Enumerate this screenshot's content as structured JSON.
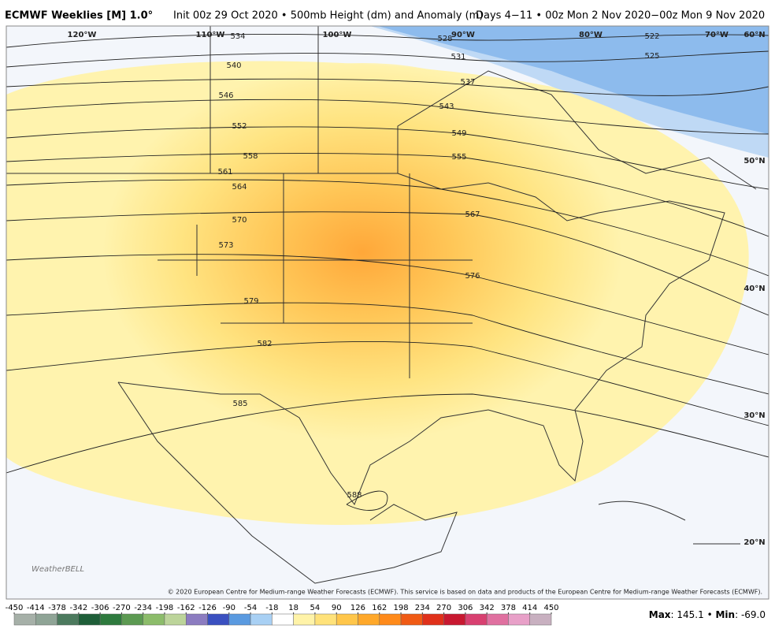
{
  "header": {
    "title": "ECMWF Weeklies [M] 1.0°",
    "subtitle": "Init 00z 29 Oct 2020 • 500mb Height (dm) and Anomaly (m)",
    "valid": "Days 4−11 • 00z Mon 2 Nov 2020−00z Mon 9 Nov 2020"
  },
  "map": {
    "longitude_labels": [
      "120°W",
      "110°W",
      "100°W",
      "90°W",
      "80°W",
      "70°W"
    ],
    "latitude_labels": [
      "60°N",
      "50°N",
      "40°N",
      "30°N",
      "20°N"
    ],
    "contour_labels": [
      534,
      540,
      546,
      552,
      558,
      561,
      564,
      570,
      573,
      579,
      582,
      585,
      588,
      528,
      531,
      537,
      543,
      549,
      555,
      567,
      576,
      522,
      525
    ],
    "logo": "WeatherBELL",
    "copyright": "© 2020 European Centre for Medium-range Weather Forecasts (ECMWF). This service is based on data and products of the European Centre for Medium-range Weather Forecasts (ECMWF)."
  },
  "colorbar": {
    "ticks": [
      -450,
      -414,
      -378,
      -342,
      -306,
      -270,
      -234,
      -198,
      -162,
      -126,
      -90,
      -54,
      -18,
      18,
      54,
      90,
      126,
      162,
      198,
      234,
      270,
      306,
      342,
      378,
      414,
      450
    ],
    "colors": [
      "#a6b0a8",
      "#8fa496",
      "#4c7a5e",
      "#1e5e38",
      "#2e7a3e",
      "#5c9a52",
      "#8cbc6a",
      "#bcd49a",
      "#8c7cc0",
      "#3a50c0",
      "#5a9ae0",
      "#a8d0f4",
      "#ffffff",
      "#fff3a8",
      "#ffe27a",
      "#ffc64a",
      "#ffa82a",
      "#ff8a1a",
      "#f05a14",
      "#e0301a",
      "#c81830",
      "#d84070",
      "#e070a0",
      "#e8a0c8",
      "#c8b0c0"
    ]
  },
  "stats": {
    "max_label": "Max",
    "max": "145.1",
    "min_label": "Min",
    "min": "-69.0"
  }
}
